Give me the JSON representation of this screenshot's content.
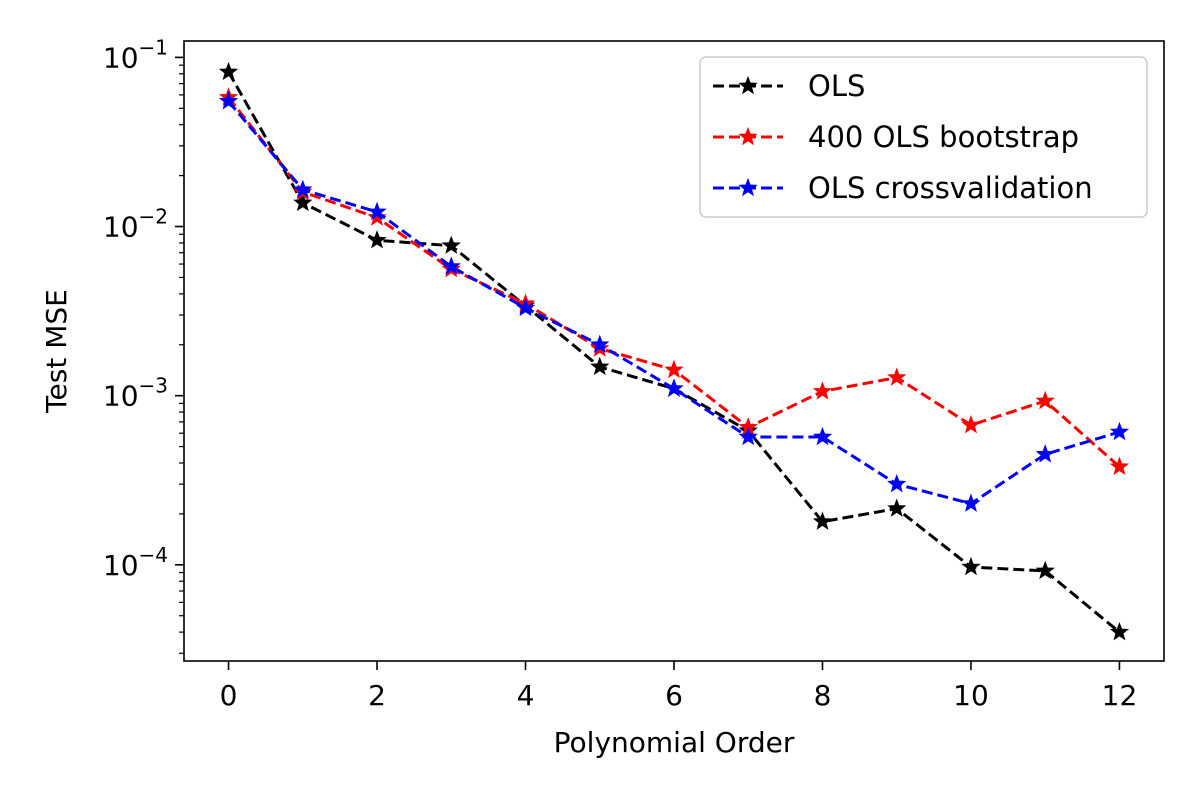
{
  "chart_data": {
    "type": "line",
    "title": "",
    "xlabel": "Polynomial Order",
    "ylabel": "Test MSE",
    "x": [
      0,
      1,
      2,
      3,
      4,
      5,
      6,
      7,
      8,
      9,
      10,
      11,
      12
    ],
    "xlim": [
      -0.6,
      12.6
    ],
    "xticks": [
      0,
      2,
      4,
      6,
      8,
      10,
      12
    ],
    "y_scale": "log",
    "ylim": [
      2.7e-05,
      0.125
    ],
    "yticks": [
      {
        "value": 0.1,
        "base": "10",
        "exp": "−1"
      },
      {
        "value": 0.01,
        "base": "10",
        "exp": "−2"
      },
      {
        "value": 0.001,
        "base": "10",
        "exp": "−3"
      },
      {
        "value": 0.0001,
        "base": "10",
        "exp": "−4"
      }
    ],
    "grid": false,
    "legend_position": "top-right",
    "marker": "star",
    "line_style": "dashed",
    "series": [
      {
        "name": "OLS",
        "color": "#000000",
        "values": [
          0.082,
          0.0138,
          0.0083,
          0.0077,
          0.0034,
          0.00148,
          0.0011,
          0.00062,
          0.00018,
          0.000215,
          9.7e-05,
          9.2e-05,
          4e-05
        ]
      },
      {
        "name": "400 OLS bootstrap",
        "color": "#ff0000",
        "values": [
          0.058,
          0.016,
          0.0113,
          0.0056,
          0.0035,
          0.0019,
          0.00142,
          0.00065,
          0.00106,
          0.00128,
          0.00067,
          0.00093,
          0.00038
        ]
      },
      {
        "name": "OLS crossvalidation",
        "color": "#0000ff",
        "values": [
          0.055,
          0.0165,
          0.0122,
          0.0058,
          0.0033,
          0.002,
          0.0011,
          0.00057,
          0.00057,
          0.0003,
          0.00023,
          0.00045,
          0.00061
        ]
      }
    ]
  }
}
